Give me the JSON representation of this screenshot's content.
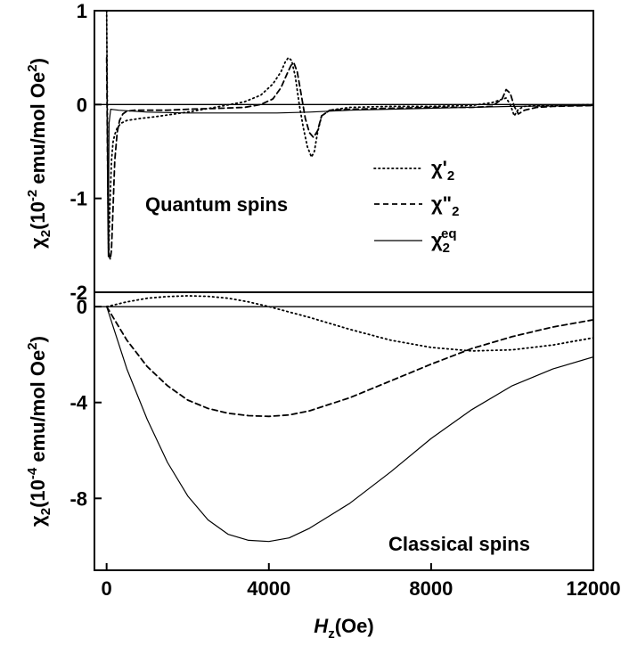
{
  "chart_data": [
    {
      "type": "line",
      "panel": "top",
      "annotation": "Quantum spins",
      "ylabel": {
        "prefix": "χ",
        "sub": "2",
        "mid": "(10",
        "sup": "-2",
        "unit": " emu/mol Oe",
        "unit_sup": "2",
        "close": ")"
      },
      "xlim": [
        -300,
        12000
      ],
      "ylim": [
        -2,
        1
      ],
      "yticks": [
        1,
        0,
        -1,
        -2
      ],
      "yticklabels": [
        "1",
        "0",
        "-1",
        "-2"
      ],
      "legend": [
        {
          "base": "χ",
          "mark": "'",
          "sub": "2",
          "sup": ""
        },
        {
          "base": "χ",
          "mark": "\"",
          "sub": "2",
          "sup": ""
        },
        {
          "base": "χ",
          "mark": "",
          "sub": "2",
          "sup": "eq"
        }
      ],
      "series": [
        {
          "name": "χ'2",
          "style": "dotted",
          "x": [
            0,
            15,
            30,
            50,
            80,
            120,
            160,
            200,
            260,
            350,
            500,
            800,
            1200,
            2000,
            2800,
            3400,
            3800,
            4100,
            4300,
            4400,
            4480,
            4560,
            4650,
            4750,
            4850,
            4950,
            5050,
            5120,
            5200,
            5300,
            5500,
            6000,
            7000,
            8000,
            9000,
            9500,
            9700,
            9850,
            9950,
            10050,
            10150,
            10300,
            10600,
            11000,
            12000
          ],
          "y": [
            1.0,
            0.2,
            -0.8,
            -1.6,
            -1.1,
            -0.6,
            -0.4,
            -0.32,
            -0.25,
            -0.2,
            -0.17,
            -0.15,
            -0.13,
            -0.08,
            -0.02,
            0.03,
            0.1,
            0.22,
            0.35,
            0.45,
            0.5,
            0.47,
            0.3,
            0.0,
            -0.25,
            -0.45,
            -0.56,
            -0.5,
            -0.3,
            -0.12,
            -0.06,
            -0.03,
            -0.02,
            -0.02,
            -0.01,
            0.02,
            0.05,
            0.07,
            0.0,
            -0.12,
            -0.05,
            -0.02,
            -0.01,
            -0.01,
            0.0
          ]
        },
        {
          "name": "χ\"2",
          "style": "dashed",
          "x": [
            0,
            20,
            40,
            60,
            90,
            120,
            160,
            200,
            260,
            320,
            400,
            500,
            700,
            1000,
            1500,
            2000,
            2800,
            3400,
            3800,
            4100,
            4300,
            4450,
            4550,
            4620,
            4700,
            4800,
            4900,
            5000,
            5100,
            5200,
            5300,
            5500,
            6000,
            7000,
            8000,
            9000,
            9500,
            9750,
            9850,
            9950,
            10050,
            10150,
            10300,
            10600,
            11000,
            12000
          ],
          "y": [
            0.5,
            -0.5,
            -1.2,
            -1.6,
            -1.65,
            -1.55,
            -1.1,
            -0.6,
            -0.3,
            -0.17,
            -0.1,
            -0.07,
            -0.06,
            -0.06,
            -0.06,
            -0.05,
            -0.04,
            -0.03,
            0.0,
            0.06,
            0.18,
            0.33,
            0.42,
            0.44,
            0.35,
            0.1,
            -0.15,
            -0.3,
            -0.35,
            -0.28,
            -0.12,
            -0.06,
            -0.05,
            -0.04,
            -0.03,
            -0.03,
            -0.02,
            0.06,
            0.16,
            0.12,
            -0.02,
            -0.1,
            -0.06,
            -0.03,
            -0.02,
            -0.01
          ]
        },
        {
          "name": "χ2eq",
          "style": "solid",
          "x": [
            0,
            10,
            20,
            30,
            40,
            50,
            60,
            100,
            300,
            1000,
            2000,
            3000,
            4000,
            4200,
            5000,
            6000,
            8000,
            10000,
            12000
          ],
          "y": [
            1.0,
            0.4,
            -0.5,
            -1.2,
            -1.62,
            -1.0,
            -0.2,
            -0.05,
            -0.06,
            -0.08,
            -0.09,
            -0.09,
            -0.09,
            -0.09,
            -0.08,
            -0.06,
            -0.04,
            -0.02,
            -0.01
          ]
        }
      ]
    },
    {
      "type": "line",
      "panel": "bottom",
      "annotation": "Classical spins",
      "ylabel": {
        "prefix": "χ",
        "sub": "2",
        "mid": "(10",
        "sup": "-4",
        "unit": " emu/mol Oe",
        "unit_sup": "2",
        "close": ")"
      },
      "xlabel": {
        "var": "H",
        "sub": "z",
        "unit": "(Oe)"
      },
      "xlim": [
        -300,
        12000
      ],
      "ylim": [
        -11,
        0.6
      ],
      "xticks": [
        0,
        4000,
        8000,
        12000
      ],
      "xticklabels": [
        "0",
        "4000",
        "8000",
        "12000"
      ],
      "yticks": [
        0,
        -4,
        -8
      ],
      "yticklabels": [
        "0",
        "-4",
        "-8"
      ],
      "series": [
        {
          "name": "χ'2",
          "style": "dotted",
          "x": [
            0,
            500,
            1000,
            1500,
            2000,
            2500,
            3000,
            3500,
            4000,
            5000,
            6000,
            7000,
            8000,
            9000,
            10000,
            11000,
            12000
          ],
          "y": [
            0,
            0.2,
            0.35,
            0.42,
            0.45,
            0.43,
            0.35,
            0.2,
            0.0,
            -0.45,
            -0.95,
            -1.4,
            -1.7,
            -1.85,
            -1.8,
            -1.6,
            -1.3
          ]
        },
        {
          "name": "χ\"2",
          "style": "dashed",
          "x": [
            0,
            500,
            1000,
            1500,
            2000,
            2500,
            3000,
            3500,
            4000,
            4500,
            5000,
            6000,
            7000,
            8000,
            9000,
            10000,
            11000,
            12000
          ],
          "y": [
            0,
            -1.4,
            -2.5,
            -3.3,
            -3.9,
            -4.25,
            -4.45,
            -4.55,
            -4.58,
            -4.52,
            -4.35,
            -3.8,
            -3.1,
            -2.4,
            -1.75,
            -1.25,
            -0.85,
            -0.55
          ]
        },
        {
          "name": "χ2eq",
          "style": "solid",
          "x": [
            0,
            500,
            1000,
            1500,
            2000,
            2500,
            3000,
            3500,
            4000,
            4500,
            5000,
            6000,
            7000,
            8000,
            9000,
            10000,
            11000,
            12000
          ],
          "y": [
            0,
            -2.6,
            -4.7,
            -6.5,
            -7.9,
            -8.9,
            -9.5,
            -9.75,
            -9.8,
            -9.65,
            -9.25,
            -8.2,
            -6.9,
            -5.5,
            -4.3,
            -3.3,
            -2.6,
            -2.1
          ]
        }
      ]
    }
  ]
}
